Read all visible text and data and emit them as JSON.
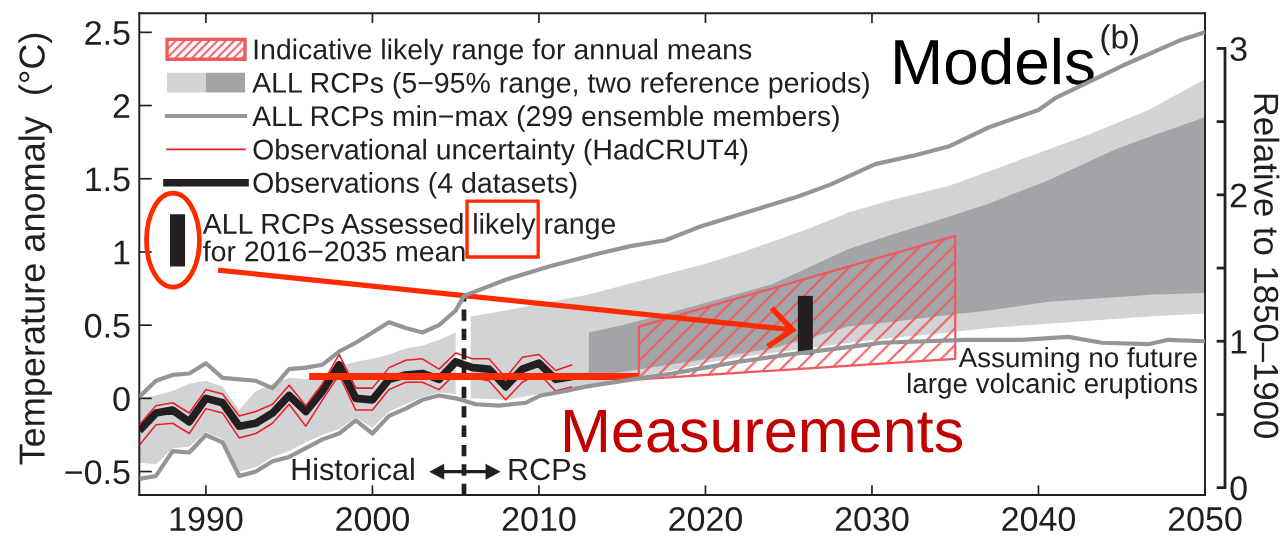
{
  "chart_data": {
    "type": "line",
    "ylabel": "Temperature anomaly  (°C)",
    "y2label": "Relative to 1850–1900",
    "xlim": [
      1986,
      2050
    ],
    "xticks": [
      1990,
      2000,
      2010,
      2020,
      2030,
      2040,
      2050
    ],
    "ylim": [
      -0.66,
      2.63
    ],
    "yticks": [
      {
        "value": -0.5,
        "label": "−0.5"
      },
      0,
      0.5,
      1,
      1.5,
      2,
      2.5
    ],
    "y2lim": [
      -0.05,
      3.24
    ],
    "y2ticks": [
      0,
      {
        "value": 0.5,
        "label": null
      },
      1,
      {
        "value": 1.5,
        "label": null
      },
      2,
      {
        "value": 2.5,
        "label": null
      },
      3
    ],
    "legend": "top left",
    "series": [
      {
        "name": "Indicative likely range for annual means",
        "type": "area",
        "color": "#f0585c",
        "x": [
          2016,
          2035
        ],
        "values": [
          null,
          null
        ],
        "lower": [
          0.13,
          0.27
        ],
        "upper": [
          0.49,
          1.11
        ]
      },
      {
        "name": "ALL RCPs (5−95% range, two reference periods)",
        "type": "area",
        "color": "#d1d3d4",
        "x": [
          1986,
          1987,
          1988,
          1989,
          1990,
          1991,
          1992,
          1993,
          1994,
          1995,
          1996,
          1997,
          1998,
          1999,
          2000,
          2001,
          2002,
          2003,
          2004,
          2005,
          2005.45,
          2005.9,
          2008,
          2013,
          2014,
          2016,
          2018,
          2020,
          2022,
          2024,
          2026,
          2028.6,
          2031,
          2034.6,
          2037,
          2040.6,
          2043,
          2046.6,
          2050
        ],
        "values": [
          null,
          null,
          null,
          null,
          null,
          null,
          null,
          null,
          null,
          null,
          null,
          null,
          null,
          null,
          null,
          null,
          null,
          null,
          null,
          null,
          null,
          null,
          null,
          null,
          null,
          null,
          null,
          null,
          null,
          null,
          null,
          null,
          null,
          null,
          null,
          null,
          null,
          null,
          null
        ],
        "upper": [
          0.0,
          0.02,
          0.05,
          0.1,
          0.12,
          0.08,
          -0.08,
          0.05,
          0.1,
          0.14,
          0.13,
          0.16,
          0.22,
          0.25,
          0.27,
          0.3,
          0.34,
          0.36,
          0.4,
          0.45,
          null,
          0.56,
          0.6,
          0.71,
          0.74,
          0.8,
          0.86,
          0.92,
          0.99,
          1.07,
          1.15,
          1.27,
          1.35,
          1.45,
          1.55,
          1.7,
          1.8,
          1.97,
          2.18
        ],
        "lower": [
          -0.44,
          -0.45,
          -0.34,
          -0.33,
          -0.23,
          -0.28,
          -0.5,
          -0.47,
          -0.4,
          -0.36,
          -0.3,
          -0.25,
          -0.21,
          -0.13,
          -0.2,
          -0.09,
          -0.04,
          0.01,
          0.04,
          0.03,
          null,
          0.0,
          -0.01,
          0.09,
          0.11,
          0.15,
          0.19,
          0.24,
          0.28,
          0.31,
          0.34,
          0.38,
          0.41,
          0.45,
          0.48,
          0.51,
          0.53,
          0.56,
          0.58
        ]
      },
      {
        "type": "area",
        "color": "#a2a4a7",
        "x": [
          2013,
          2015,
          2019,
          2024,
          2028.6,
          2031,
          2034.6,
          2037,
          2040.6,
          2044.6,
          2047,
          2050
        ],
        "values": [
          null,
          null,
          null,
          null,
          null,
          null,
          null,
          null,
          null,
          null,
          null,
          null
        ],
        "upper": [
          0.45,
          0.5,
          0.62,
          0.78,
          1.02,
          1.11,
          1.24,
          1.33,
          1.49,
          1.7,
          1.8,
          1.92
        ],
        "lower": [
          0.15,
          0.18,
          0.25,
          0.34,
          0.49,
          0.52,
          0.57,
          0.6,
          0.66,
          0.69,
          0.71,
          0.72
        ]
      },
      {
        "name": "ALL RCPs min−max (299 ensemble members)",
        "color": "#939598",
        "x": [
          1986,
          1987,
          1988,
          1989,
          1990,
          1991,
          1992,
          1993,
          1994,
          1995,
          1996,
          1997,
          1998,
          1999,
          2000,
          2001,
          2002,
          2003,
          2004,
          2005,
          2005.5,
          2008,
          2010.6,
          2013.6,
          2015.5,
          2017.6,
          2019.6,
          2021.6,
          2023.6,
          2025.6,
          2027.5,
          2030.2,
          2032.6,
          2034.6,
          2037,
          2040,
          2041,
          2045,
          2048.6,
          2050
        ],
        "values": [
          0.01,
          0.12,
          0.16,
          0.17,
          0.24,
          0.14,
          0.13,
          0.12,
          0.07,
          0.2,
          0.21,
          0.23,
          0.32,
          0.38,
          0.45,
          0.52,
          0.48,
          0.45,
          0.5,
          0.6,
          0.7,
          0.81,
          0.9,
          0.99,
          1.04,
          1.08,
          1.17,
          1.24,
          1.31,
          1.38,
          1.46,
          1.6,
          1.66,
          1.72,
          1.85,
          1.97,
          2.05,
          2.27,
          2.45,
          2.5
        ]
      },
      {
        "color": "#939598",
        "x": [
          1986,
          1987,
          1988,
          1989,
          1990,
          1991,
          1992,
          1993,
          1994,
          1995,
          1996,
          1997,
          1998,
          1999,
          2000,
          2001,
          2002,
          2003,
          2004,
          2005,
          2006.2,
          2007.6,
          2009.2,
          2010.1,
          2011.6,
          2012.8,
          2015.6,
          2018,
          2020,
          2022,
          2025,
          2028.6,
          2030.6,
          2035.6,
          2039,
          2041.8,
          2043.8,
          2046.6,
          2047.8,
          2050
        ],
        "values": [
          -0.55,
          -0.53,
          -0.36,
          -0.37,
          -0.25,
          -0.3,
          -0.53,
          -0.5,
          -0.43,
          -0.4,
          -0.34,
          -0.28,
          -0.24,
          -0.15,
          -0.24,
          -0.12,
          -0.07,
          -0.01,
          0.02,
          0.0,
          -0.04,
          -0.05,
          -0.03,
          0.02,
          0.05,
          0.08,
          0.13,
          0.17,
          0.21,
          0.25,
          0.3,
          0.35,
          0.38,
          0.4,
          0.4,
          0.42,
          0.38,
          0.37,
          0.4,
          0.39
        ]
      },
      {
        "name": "Observational uncertainty (HadCRUT4)",
        "color": "#ed1c24",
        "x": [
          1986,
          1987,
          1988,
          1989,
          1990,
          1991,
          1992,
          1993,
          1994,
          1995,
          1996,
          1997,
          1998,
          1999,
          2000,
          2001,
          2002,
          2003,
          2004,
          2005,
          2006,
          2007,
          2008,
          2009,
          2010,
          2011,
          2012
        ],
        "values": [
          -0.18,
          -0.05,
          -0.03,
          -0.1,
          0.06,
          0.03,
          -0.12,
          -0.09,
          -0.04,
          0.09,
          -0.05,
          0.1,
          0.3,
          0.07,
          0.07,
          0.21,
          0.26,
          0.27,
          0.2,
          0.31,
          0.27,
          0.27,
          0.14,
          0.28,
          0.3,
          0.19,
          0.23
        ]
      },
      {
        "color": "#ed1c24",
        "x": [
          1986,
          1987,
          1988,
          1989,
          1990,
          1991,
          1992,
          1993,
          1994,
          1995,
          1996,
          1997,
          1998,
          1999,
          2000,
          2001,
          2002,
          2003,
          2004,
          2005,
          2006,
          2007,
          2008,
          2009,
          2010,
          2011,
          2012
        ],
        "values": [
          -0.32,
          -0.18,
          -0.17,
          -0.24,
          -0.07,
          -0.1,
          -0.27,
          -0.24,
          -0.17,
          -0.04,
          -0.19,
          -0.01,
          0.16,
          -0.08,
          -0.08,
          0.06,
          0.11,
          0.11,
          0.06,
          0.17,
          0.14,
          0.12,
          -0.01,
          0.11,
          0.17,
          0.05,
          0.08
        ]
      },
      {
        "name": "Observations (4 datasets)",
        "color": "#231f20",
        "x": [
          1986,
          1987,
          1988,
          1989,
          1990,
          1991,
          1992,
          1993,
          1994,
          1995,
          1996,
          1997,
          1998,
          1999,
          2000,
          2001,
          2002,
          2003,
          2004,
          2005,
          2006,
          2007,
          2008,
          2009,
          2010,
          2011,
          2012
        ],
        "values": [
          -0.22,
          -0.1,
          -0.08,
          -0.16,
          0.0,
          -0.03,
          -0.19,
          -0.17,
          -0.1,
          0.02,
          -0.09,
          0.05,
          0.23,
          0.0,
          -0.01,
          0.13,
          0.16,
          0.17,
          0.13,
          0.25,
          0.21,
          0.2,
          0.08,
          0.2,
          0.24,
          0.13,
          0.15
        ]
      },
      {
        "name": "ALL RCPs Assessed likely range\nfor 2016−2035 mean",
        "type": "bar",
        "color": "#231f20",
        "x": [
          2026
        ],
        "base": [
          0.3
        ],
        "values": [
          0.4
        ]
      },
      {
        "color": "#231f20",
        "line_style": "dashed",
        "x": [
          2005.5,
          2005.5
        ],
        "values": [
          -0.66,
          0.72
        ]
      },
      {
        "color": "#ff2a00",
        "x": [
          1996.2,
          2016
        ],
        "values": [
          0.15,
          0.15
        ]
      }
    ],
    "annotations": [
      "(b)",
      "Models",
      "Measurements",
      "Historical",
      "RCPs",
      "Assuming no future\nlarge volcanic eruptions"
    ]
  }
}
